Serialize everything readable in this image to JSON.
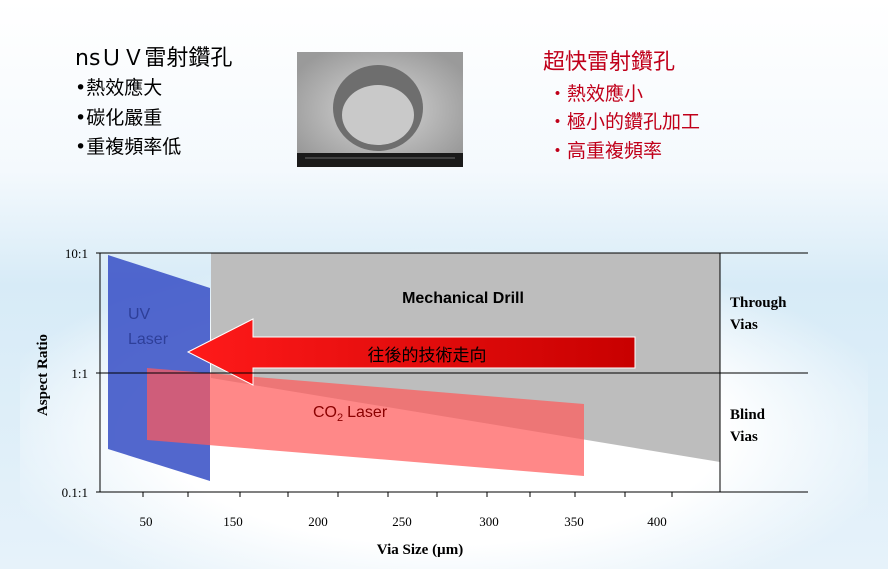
{
  "left": {
    "title": "nsＵＶ雷射鑽孔",
    "items": [
      "•熱效應大",
      "•碳化嚴重",
      "•重複頻率低"
    ]
  },
  "right": {
    "title": "超快雷射鑽孔",
    "items": [
      "・熱效應小",
      "・極小的鑽孔加工",
      "・高重複頻率"
    ]
  },
  "chart": {
    "y_axis_title": "Aspect Ratio",
    "x_axis_title": "Via Size (µm)",
    "y_ticks": [
      "10:1",
      "1:1",
      "0.1:1"
    ],
    "x_ticks": [
      "50",
      "150",
      "200",
      "250",
      "300",
      "350",
      "400"
    ],
    "mechanical_label": "Mechanical Drill",
    "uv_label": [
      "UV",
      "Laser"
    ],
    "co2_label": {
      "main": "CO",
      "sub": "2",
      "rest": "Laser"
    },
    "arrow_label": "往後的技術走向",
    "through_label": [
      "Through",
      "Vias"
    ],
    "blind_label": [
      "Blind",
      "Vias"
    ]
  }
}
